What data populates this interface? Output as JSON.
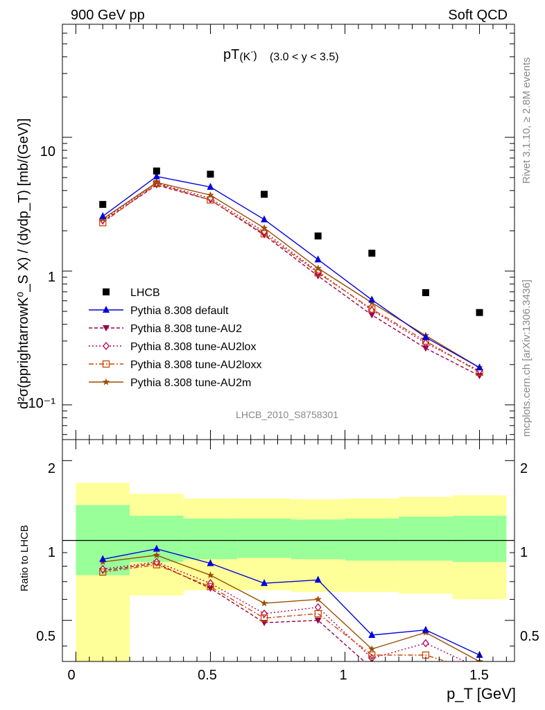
{
  "header": {
    "left": "900 GeV pp",
    "right": "Soft QCD"
  },
  "side_labels": {
    "rivet": "Rivet 3.1.10, ≥ 2.8M events",
    "mcplots": "mcplots.cern.ch [arXiv:1306.3436]"
  },
  "plot_title": {
    "main": "pT",
    "sub": "(K",
    "sup": "-",
    "close": ")",
    "range": "(3.0 < y < 3.5)"
  },
  "watermark": "LHCB_2010_S8758301",
  "axes": {
    "ylabel_top": "d²σ(pprightarrowK⁰_S X) / (dydp_T) [mb/(GeV)]",
    "ylabel_bottom": "Ratio to LHCB",
    "xlabel": "p_T [GeV]",
    "xticks": [
      "0",
      "0.5",
      "1",
      "1.5"
    ],
    "yticks_top": [
      "10",
      "1",
      "10⁻¹"
    ],
    "yticks_bottom": [
      "2",
      "1",
      "0.5"
    ]
  },
  "colors": {
    "data": "#000000",
    "default": "#0000dd",
    "au2": "#99004d",
    "au2lox": "#b30059",
    "au2loxx": "#cc4400",
    "au2m": "#994d00",
    "band_inner": "#99ff99",
    "band_outer": "#ffff99"
  },
  "chart_data": {
    "type": "line",
    "x": [
      0.1,
      0.3,
      0.5,
      0.7,
      0.9,
      1.1,
      1.3,
      1.5
    ],
    "xlim": [
      -0.05,
      1.63
    ],
    "ylim_top": [
      0.055,
      70
    ],
    "ylim_bottom": [
      0.35,
      2.4
    ],
    "log_y_top": true,
    "log_y_bottom": true,
    "legend_position": "lower-left",
    "data": {
      "name": "LHCB",
      "values": [
        3.15,
        5.6,
        5.3,
        3.75,
        1.83,
        1.36,
        0.69,
        0.49
      ]
    },
    "series": [
      {
        "key": "default",
        "name": "Pythia 8.308 default",
        "marker": "triangle-up",
        "dash": "",
        "values": [
          2.57,
          5.1,
          4.25,
          2.43,
          1.22,
          0.61,
          0.32,
          0.19
        ]
      },
      {
        "key": "au2",
        "name": "Pythia 8.308 tune-AU2",
        "marker": "triangle-down",
        "dash": "5,3",
        "values": [
          2.35,
          4.4,
          3.4,
          1.86,
          0.92,
          0.47,
          0.265,
          0.165
        ]
      },
      {
        "key": "au2lox",
        "name": "Pythia 8.308 tune-AU2lox",
        "marker": "diamond",
        "dash": "2,3",
        "values": [
          2.4,
          4.55,
          3.5,
          1.97,
          0.99,
          0.51,
          0.29,
          0.18
        ]
      },
      {
        "key": "au2loxx",
        "name": "Pythia 8.308 tune-AU2loxx",
        "marker": "square",
        "dash": "7,3,2,3",
        "values": [
          2.3,
          4.5,
          3.4,
          1.9,
          0.97,
          0.52,
          0.3,
          0.175
        ]
      },
      {
        "key": "au2m",
        "name": "Pythia 8.308 tune-AU2m",
        "marker": "star",
        "dash": "",
        "values": [
          2.45,
          4.6,
          3.7,
          2.1,
          1.05,
          0.58,
          0.33,
          0.19
        ]
      }
    ],
    "bands": {
      "edges": [
        0.0,
        0.2,
        0.4,
        0.6,
        0.8,
        1.0,
        1.2,
        1.4,
        1.6
      ],
      "outer_lo": [
        0.33,
        0.62,
        0.65,
        0.65,
        0.64,
        0.64,
        0.63,
        0.6
      ],
      "outer_hi": [
        1.65,
        1.5,
        1.44,
        1.44,
        1.43,
        1.44,
        1.46,
        1.48
      ],
      "inner_lo": [
        0.74,
        0.83,
        0.85,
        0.86,
        0.85,
        0.84,
        0.84,
        0.83
      ],
      "inner_hi": [
        1.36,
        1.24,
        1.21,
        1.21,
        1.2,
        1.21,
        1.23,
        1.24
      ]
    },
    "ratios": {
      "default": [
        0.85,
        0.93,
        0.82,
        0.69,
        0.71,
        0.44,
        0.46,
        0.37
      ],
      "au2": [
        0.77,
        0.82,
        0.66,
        0.49,
        0.5,
        0.33,
        0.34,
        0.3
      ],
      "au2lox": [
        0.78,
        0.83,
        0.69,
        0.53,
        0.56,
        0.36,
        0.41,
        0.33
      ],
      "au2loxx": [
        0.76,
        0.81,
        0.67,
        0.51,
        0.53,
        0.37,
        0.37,
        0.32
      ],
      "au2m": [
        0.83,
        0.88,
        0.74,
        0.58,
        0.6,
        0.39,
        0.45,
        0.35
      ]
    }
  }
}
